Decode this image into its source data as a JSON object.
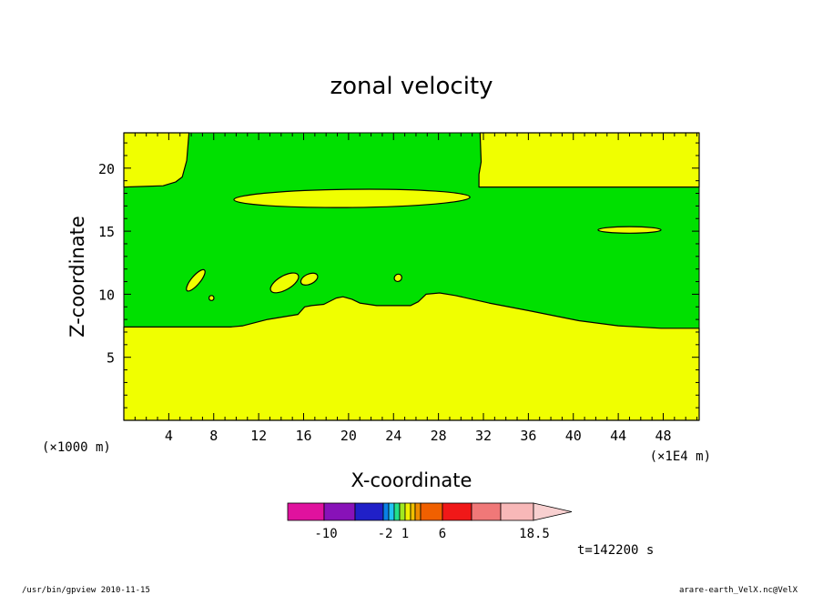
{
  "chart_data": {
    "type": "heatmap",
    "title": "zonal velocity",
    "xlabel": "X-coordinate",
    "ylabel": "Z-coordinate",
    "x_unit_left": "(×1000 m)",
    "x_unit_right": "(×1E4 m)",
    "x_ticks": [
      4,
      8,
      12,
      16,
      20,
      24,
      28,
      32,
      36,
      40,
      44,
      48
    ],
    "y_ticks": [
      5,
      10,
      15,
      20
    ],
    "xlim": [
      0,
      51.2
    ],
    "ylim": [
      0,
      22.8
    ],
    "grid": false,
    "colorbar": {
      "levels": [
        -10,
        -2,
        1,
        6,
        18.5
      ],
      "level_labels": [
        "-10",
        "-2",
        "1",
        "6",
        "18.5"
      ],
      "colors": [
        "#e0129e",
        "#8812b8",
        "#2020c8",
        "#0a7fe6",
        "#22c4f0",
        "#22e08a",
        "#a0e820",
        "#f0f000",
        "#f0c000",
        "#f08c00",
        "#f06000",
        "#f01818",
        "#f07878",
        "#f8b8b8",
        "#f8d0d0"
      ]
    },
    "colors": {
      "positive": "#f0ff00",
      "negative": "#00e000",
      "line": "#000000"
    },
    "regions": [
      {
        "name": "lower-positive",
        "polygon": [
          [
            0,
            0
          ],
          [
            51.2,
            0
          ],
          [
            51.2,
            7.3
          ],
          [
            47.8,
            7.3
          ],
          [
            44,
            7.5
          ],
          [
            40.5,
            7.9
          ],
          [
            36,
            8.7
          ],
          [
            32.5,
            9.3
          ],
          [
            29.5,
            9.9
          ],
          [
            28.1,
            10.1
          ],
          [
            26.9,
            10
          ],
          [
            26.2,
            9.4
          ],
          [
            25.5,
            9.1
          ],
          [
            22.5,
            9.1
          ],
          [
            21,
            9.3
          ],
          [
            20.3,
            9.6
          ],
          [
            19.5,
            9.8
          ],
          [
            18.9,
            9.7
          ],
          [
            17.8,
            9.2
          ],
          [
            16.7,
            9.1
          ],
          [
            16.1,
            9
          ],
          [
            16,
            8.9
          ],
          [
            15.5,
            8.4
          ],
          [
            12.8,
            8
          ],
          [
            10.6,
            7.5
          ],
          [
            9.5,
            7.4
          ],
          [
            0,
            7.4
          ]
        ]
      },
      {
        "name": "upper-left-positive",
        "polygon": [
          [
            0,
            22.8
          ],
          [
            5.8,
            22.8
          ],
          [
            5.6,
            20.6
          ],
          [
            5.2,
            19.3
          ],
          [
            4.6,
            18.9
          ],
          [
            3.5,
            18.6
          ],
          [
            0,
            18.5
          ]
        ]
      },
      {
        "name": "upper-right-positive",
        "polygon": [
          [
            31.7,
            22.8
          ],
          [
            51.2,
            22.8
          ],
          [
            51.2,
            18.5
          ],
          [
            31.6,
            18.5
          ],
          [
            31.6,
            19.5
          ],
          [
            31.8,
            20.5
          ]
        ]
      },
      {
        "name": "band-positive",
        "center": [
          20.3,
          17.6
        ],
        "rx": 10.5,
        "ry": 0.72,
        "rotate_deg": -0.6
      },
      {
        "name": "blob-44",
        "center": [
          45,
          15.1
        ],
        "rx": 2.8,
        "ry": 0.26
      },
      {
        "name": "blob-6",
        "center": [
          6.4,
          11.1
        ],
        "rx": 1.2,
        "ry": 0.35,
        "rotate_deg": -50
      },
      {
        "name": "blob-8",
        "center": [
          7.8,
          9.7
        ],
        "rx": 0.22,
        "ry": 0.2
      },
      {
        "name": "blob-14",
        "center": [
          14.3,
          10.9
        ],
        "rx": 1.4,
        "ry": 0.55,
        "rotate_deg": -30
      },
      {
        "name": "blob-16",
        "center": [
          16.5,
          11.2
        ],
        "rx": 0.8,
        "ry": 0.4,
        "rotate_deg": -25
      },
      {
        "name": "blob-24",
        "center": [
          24.4,
          11.3
        ],
        "rx": 0.35,
        "ry": 0.28,
        "rotate_deg": -40
      }
    ],
    "time_label": "t=142200 s"
  },
  "footer": {
    "left": "/usr/bin/gpview 2010-11-15",
    "right": "arare-earth_VelX.nc@VelX"
  }
}
